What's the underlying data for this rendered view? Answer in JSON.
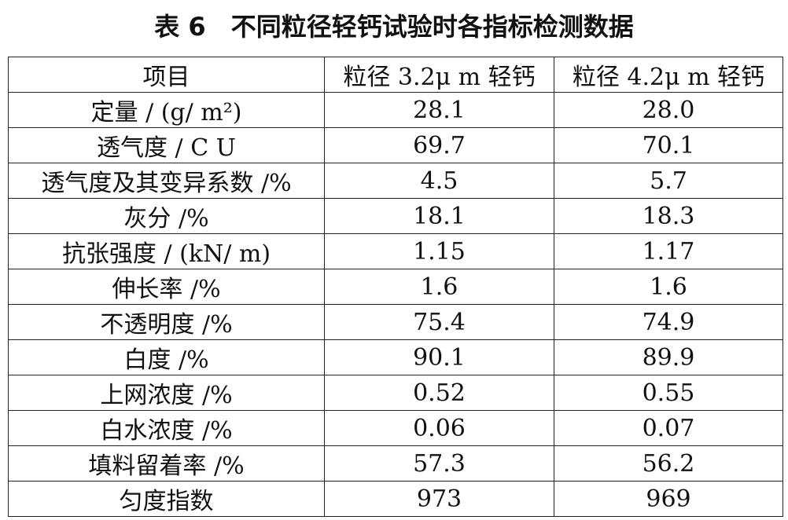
{
  "title": "表 6　不同粒径轻钙试验时各指标检测数据",
  "table": {
    "header": [
      "项目",
      "粒径 3.2μ m 轻钙",
      "粒径 4.2μ m 轻钙"
    ],
    "rows": [
      [
        "定量 / (g/ m²)",
        "28.1",
        "28.0"
      ],
      [
        "透气度 / C U",
        "69.7",
        "70.1"
      ],
      [
        "透气度及其变异系数 /%",
        "4.5",
        "5.7"
      ],
      [
        "灰分 /%",
        "18.1",
        "18.3"
      ],
      [
        "抗张强度 / (kN/ m)",
        "1.15",
        "1.17"
      ],
      [
        "伸长率 /%",
        "1.6",
        "1.6"
      ],
      [
        "不透明度 /%",
        "75.4",
        "74.9"
      ],
      [
        "白度 /%",
        "90.1",
        "89.9"
      ],
      [
        "上网浓度 /%",
        "0.52",
        "0.55"
      ],
      [
        "白水浓度 /%",
        "0.06",
        "0.07"
      ],
      [
        "填料留着率 /%",
        "57.3",
        "56.2"
      ],
      [
        "匀度指数",
        "973",
        "969"
      ]
    ]
  }
}
